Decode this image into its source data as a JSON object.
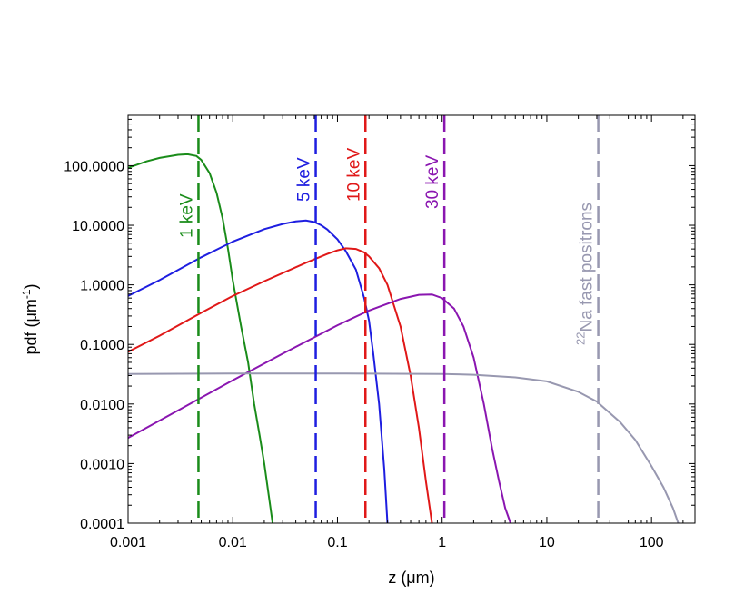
{
  "chart_data": {
    "type": "line",
    "xlabel": "z (μm)",
    "xscale": "log",
    "xlim": [
      0.001,
      260
    ],
    "ylabel_main": "pdf (μm",
    "ylabel_sup": "-1",
    "ylabel_end": ")",
    "yscale": "log",
    "ylim": [
      0.0001,
      700
    ],
    "grid": false,
    "x_ticks": [
      {
        "value": 0.001,
        "label": "0.001"
      },
      {
        "value": 0.01,
        "label": "0.01"
      },
      {
        "value": 0.1,
        "label": "0.1"
      },
      {
        "value": 1,
        "label": "1"
      },
      {
        "value": 10,
        "label": "10"
      },
      {
        "value": 100,
        "label": "100"
      }
    ],
    "y_ticks": [
      {
        "value": 0.0001,
        "label": "0.0001"
      },
      {
        "value": 0.001,
        "label": "0.0010"
      },
      {
        "value": 0.01,
        "label": "0.0100"
      },
      {
        "value": 0.1,
        "label": "0.1000"
      },
      {
        "value": 1,
        "label": "1.0000"
      },
      {
        "value": 10,
        "label": "10.0000"
      },
      {
        "value": 100,
        "label": "100.0000"
      }
    ],
    "series": [
      {
        "name": "1 keV",
        "color": "#1a8c1a",
        "x": [
          0.001,
          0.0015,
          0.002,
          0.003,
          0.0037,
          0.0045,
          0.005,
          0.006,
          0.007,
          0.008,
          0.009,
          0.01,
          0.012,
          0.014,
          0.016,
          0.018,
          0.02,
          0.022,
          0.024
        ],
        "y": [
          92,
          118,
          135,
          152,
          155,
          145,
          125,
          75,
          35,
          13,
          4,
          1.2,
          0.2,
          0.05,
          0.01,
          0.003,
          0.001,
          0.0003,
          0.0001
        ],
        "vline_x": 0.0047
      },
      {
        "name": "5 keV",
        "color": "#1e1ee0",
        "x": [
          0.001,
          0.002,
          0.005,
          0.01,
          0.02,
          0.03,
          0.04,
          0.05,
          0.06,
          0.07,
          0.08,
          0.1,
          0.12,
          0.15,
          0.18,
          0.2,
          0.22,
          0.25,
          0.28,
          0.3
        ],
        "y": [
          0.65,
          1.2,
          2.9,
          5.3,
          8.6,
          10.5,
          11.6,
          12,
          11.3,
          10,
          8.5,
          5.8,
          3.7,
          1.8,
          0.6,
          0.25,
          0.07,
          0.01,
          0.0008,
          0.0001
        ],
        "vline_x": 0.062
      },
      {
        "name": "10 keV",
        "color": "#e01818",
        "x": [
          0.001,
          0.002,
          0.005,
          0.01,
          0.02,
          0.05,
          0.08,
          0.1,
          0.12,
          0.15,
          0.18,
          0.2,
          0.25,
          0.3,
          0.4,
          0.5,
          0.6,
          0.7,
          0.8
        ],
        "y": [
          0.075,
          0.14,
          0.34,
          0.65,
          1.15,
          2.35,
          3.3,
          3.8,
          4.1,
          4,
          3.5,
          3,
          1.9,
          1,
          0.2,
          0.03,
          0.004,
          0.0005,
          0.0001
        ],
        "vline_x": 0.185
      },
      {
        "name": "30 keV",
        "color": "#8a16b0",
        "x": [
          0.001,
          0.003,
          0.01,
          0.03,
          0.1,
          0.2,
          0.4,
          0.6,
          0.8,
          1,
          1.3,
          1.6,
          2,
          2.5,
          3,
          3.5,
          4,
          4.5
        ],
        "y": [
          0.0027,
          0.0078,
          0.025,
          0.07,
          0.21,
          0.37,
          0.58,
          0.68,
          0.69,
          0.6,
          0.4,
          0.2,
          0.06,
          0.01,
          0.0018,
          0.0005,
          0.00018,
          0.0001
        ],
        "vline_x": 1.05
      },
      {
        "name": "22Na fast positrons",
        "label_sup": "22",
        "label_rest": "Na fast positrons",
        "color": "#9898b0",
        "x": [
          0.001,
          0.01,
          0.1,
          1,
          2,
          5,
          10,
          20,
          30,
          50,
          70,
          100,
          130,
          160,
          180
        ],
        "y": [
          0.032,
          0.0325,
          0.0325,
          0.032,
          0.031,
          0.028,
          0.024,
          0.016,
          0.011,
          0.005,
          0.0025,
          0.0009,
          0.0004,
          0.00018,
          0.0001
        ],
        "vline_x": 31
      }
    ]
  }
}
